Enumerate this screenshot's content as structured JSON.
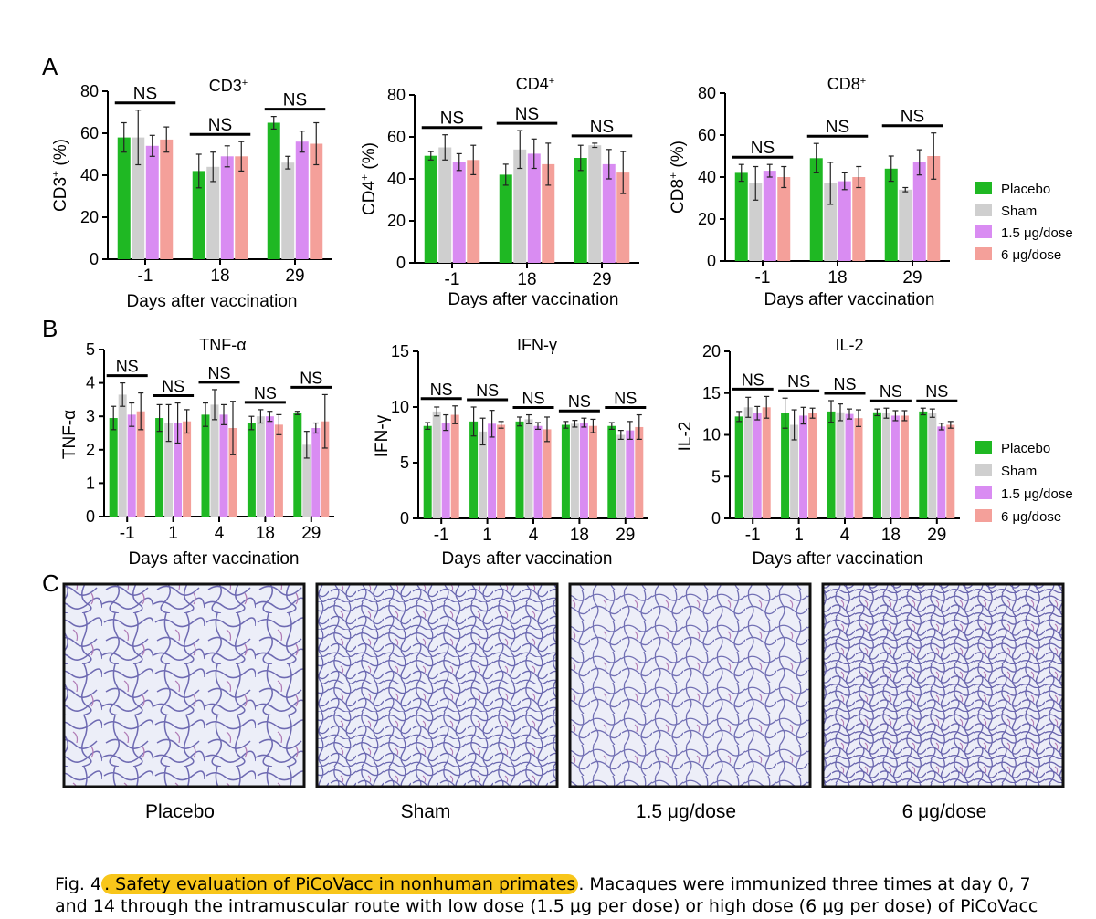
{
  "panel_letters": {
    "a": "A",
    "b": "B",
    "c": "C"
  },
  "legend": {
    "items": [
      {
        "label": "Placebo",
        "color": "#1fb823"
      },
      {
        "label": "Sham",
        "color": "#cfcfcf"
      },
      {
        "label": "1.5 μg/dose",
        "color": "#d98cf2"
      },
      {
        "label": "6 μg/dose",
        "color": "#f4a09a"
      }
    ]
  },
  "sig_label": "NS",
  "images": [
    {
      "label": "Placebo"
    },
    {
      "label": "Sham"
    },
    {
      "label": "1.5 μg/dose"
    },
    {
      "label": "6 μg/dose"
    }
  ],
  "caption": {
    "prefix": "Fig. 4",
    "title": ". Safety evaluation of PiCoVacc in nonhuman primates",
    "text": ". Macaques were immunized three times at day 0, 7",
    "line2": "and 14 through the intramuscular route with low dose (1.5 μg per dose) or high dose (6 μg per dose) of PiCoVacc"
  },
  "chart_data": [
    {
      "type": "bar",
      "id": "cd3",
      "title": "CD3",
      "title_sup": "+",
      "ylabel": "CD3",
      "ylabel_sup": "+",
      "ylabel_suffix": " (%)",
      "xlabel": "Days after vaccination",
      "ylim": [
        0,
        80
      ],
      "yticks": [
        0,
        20,
        40,
        60,
        80
      ],
      "categories": [
        "-1",
        "18",
        "29"
      ],
      "series": [
        {
          "name": "Placebo",
          "values": [
            58,
            42,
            65
          ],
          "errors": [
            7,
            8,
            3
          ]
        },
        {
          "name": "Sham",
          "values": [
            58,
            44,
            46
          ],
          "errors": [
            13,
            7,
            3
          ]
        },
        {
          "name": "1.5 μg/dose",
          "values": [
            54,
            49,
            56
          ],
          "errors": [
            5,
            5,
            5
          ]
        },
        {
          "name": "6 μg/dose",
          "values": [
            57,
            49,
            55
          ],
          "errors": [
            6,
            7,
            10
          ]
        }
      ],
      "ns": [
        true,
        true,
        true
      ]
    },
    {
      "type": "bar",
      "id": "cd4",
      "title": "CD4",
      "title_sup": "+",
      "ylabel": "CD4",
      "ylabel_sup": "+",
      "ylabel_suffix": " (%)",
      "xlabel": "Days after vaccination",
      "ylim": [
        0,
        80
      ],
      "yticks": [
        0,
        20,
        40,
        60,
        80
      ],
      "categories": [
        "-1",
        "18",
        "29"
      ],
      "series": [
        {
          "name": "Placebo",
          "values": [
            51,
            42,
            50
          ],
          "errors": [
            2,
            5,
            6
          ]
        },
        {
          "name": "Sham",
          "values": [
            55,
            54,
            56
          ],
          "errors": [
            6,
            9,
            1
          ]
        },
        {
          "name": "1.5 μg/dose",
          "values": [
            48,
            52,
            47
          ],
          "errors": [
            4,
            7,
            7
          ]
        },
        {
          "name": "6 μg/dose",
          "values": [
            49,
            47,
            43
          ],
          "errors": [
            7,
            10,
            10
          ]
        }
      ],
      "ns": [
        true,
        true,
        true
      ]
    },
    {
      "type": "bar",
      "id": "cd8",
      "title": "CD8",
      "title_sup": "+",
      "ylabel": "CD8",
      "ylabel_sup": "+",
      "ylabel_suffix": " (%)",
      "xlabel": "Days after vaccination",
      "ylim": [
        0,
        80
      ],
      "yticks": [
        0,
        20,
        40,
        60,
        80
      ],
      "categories": [
        "-1",
        "18",
        "29"
      ],
      "series": [
        {
          "name": "Placebo",
          "values": [
            42,
            49,
            44
          ],
          "errors": [
            4,
            7,
            6
          ]
        },
        {
          "name": "Sham",
          "values": [
            37,
            37,
            34
          ],
          "errors": [
            8,
            10,
            1
          ]
        },
        {
          "name": "1.5 μg/dose",
          "values": [
            43,
            38,
            47
          ],
          "errors": [
            3,
            4,
            6
          ]
        },
        {
          "name": "6 μg/dose",
          "values": [
            40,
            40,
            50
          ],
          "errors": [
            5,
            5,
            11
          ]
        }
      ],
      "ns": [
        true,
        true,
        true
      ]
    },
    {
      "type": "bar",
      "id": "tnf",
      "title": "TNF-α",
      "title_sup": "",
      "ylabel": "TNF-α",
      "ylabel_sup": "",
      "ylabel_suffix": "",
      "xlabel": "Days after vaccination",
      "ylim": [
        0,
        5
      ],
      "yticks": [
        0,
        1,
        2,
        3,
        4,
        5
      ],
      "categories": [
        "-1",
        "1",
        "4",
        "18",
        "29"
      ],
      "series": [
        {
          "name": "Placebo",
          "values": [
            2.95,
            2.95,
            3.05,
            2.8,
            3.1
          ],
          "errors": [
            0.35,
            0.4,
            0.35,
            0.2,
            0.05
          ]
        },
        {
          "name": "Sham",
          "values": [
            3.65,
            2.8,
            3.35,
            3.0,
            2.15
          ],
          "errors": [
            0.35,
            0.55,
            0.45,
            0.2,
            0.4
          ]
        },
        {
          "name": "1.5 μg/dose",
          "values": [
            3.05,
            2.8,
            3.05,
            3.0,
            2.65
          ],
          "errors": [
            0.35,
            0.6,
            0.3,
            0.15,
            0.15
          ]
        },
        {
          "name": "6 μg/dose",
          "values": [
            3.15,
            2.85,
            2.65,
            2.75,
            2.85
          ],
          "errors": [
            0.55,
            0.35,
            0.8,
            0.3,
            0.8
          ]
        }
      ],
      "ns": [
        true,
        true,
        true,
        true,
        true
      ]
    },
    {
      "type": "bar",
      "id": "ifn",
      "title": "IFN-γ",
      "title_sup": "",
      "ylabel": "IFN-γ",
      "ylabel_sup": "",
      "ylabel_suffix": "",
      "xlabel": "Days after vaccination",
      "ylim": [
        0,
        15
      ],
      "yticks": [
        0,
        5,
        10,
        15
      ],
      "categories": [
        "-1",
        "1",
        "4",
        "18",
        "29"
      ],
      "series": [
        {
          "name": "Placebo",
          "values": [
            8.3,
            8.7,
            8.7,
            8.4,
            8.3
          ],
          "errors": [
            0.3,
            1.3,
            0.4,
            0.3,
            0.3
          ]
        },
        {
          "name": "Sham",
          "values": [
            9.6,
            7.8,
            8.9,
            8.5,
            7.5
          ],
          "errors": [
            0.4,
            1.2,
            0.4,
            0.3,
            0.4
          ]
        },
        {
          "name": "1.5 μg/dose",
          "values": [
            8.6,
            8.5,
            8.3,
            8.6,
            7.9
          ],
          "errors": [
            0.7,
            1.2,
            0.3,
            0.4,
            0.8
          ]
        },
        {
          "name": "6 μg/dose",
          "values": [
            9.3,
            8.4,
            8.0,
            8.3,
            8.2
          ],
          "errors": [
            0.8,
            0.3,
            1.1,
            0.6,
            1.1
          ]
        }
      ],
      "ns": [
        true,
        true,
        true,
        true,
        true
      ]
    },
    {
      "type": "bar",
      "id": "il2",
      "title": "IL-2",
      "title_sup": "",
      "ylabel": "IL-2",
      "ylabel_sup": "",
      "ylabel_suffix": "",
      "xlabel": "Days after vaccination",
      "ylim": [
        0,
        20
      ],
      "yticks": [
        0,
        5,
        10,
        15,
        20
      ],
      "categories": [
        "-1",
        "1",
        "4",
        "18",
        "29"
      ],
      "series": [
        {
          "name": "Placebo",
          "values": [
            12.2,
            12.6,
            12.8,
            12.7,
            12.8
          ],
          "errors": [
            0.6,
            1.8,
            1.3,
            0.4,
            0.4
          ]
        },
        {
          "name": "Sham",
          "values": [
            13.3,
            11.2,
            12.7,
            12.6,
            12.6
          ],
          "errors": [
            1.2,
            1.8,
            1.0,
            0.6,
            0.5
          ]
        },
        {
          "name": "1.5 μg/dose",
          "values": [
            12.6,
            12.3,
            12.5,
            12.3,
            11.0
          ],
          "errors": [
            0.8,
            1.0,
            0.6,
            0.6,
            0.4
          ]
        },
        {
          "name": "6 μg/dose",
          "values": [
            13.3,
            12.6,
            12.0,
            12.3,
            11.2
          ],
          "errors": [
            1.3,
            0.6,
            1.0,
            0.6,
            0.4
          ]
        }
      ],
      "ns": [
        true,
        true,
        true,
        true,
        true
      ]
    }
  ]
}
